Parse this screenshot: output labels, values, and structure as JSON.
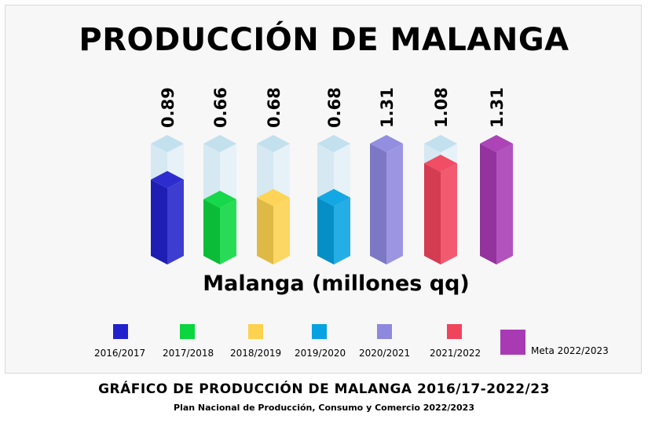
{
  "title": "PRODUCCIÓN DE MALANGA",
  "subtitle": "Malanga (millones qq)",
  "footer": {
    "main": "GRÁFICO DE PRODUCCIÓN DE MALANGA 2016/17-2022/23",
    "source": "Plan Nacional de Producción, Consumo y Comercio 2022/2023"
  },
  "chart_data": {
    "type": "bar",
    "title": "PRODUCCIÓN DE MALANGA",
    "ylabel": "Malanga (millones qq)",
    "xlabel": "",
    "categories": [
      "2016/2017",
      "2017/2018",
      "2018/2019",
      "2019/2020",
      "2020/2021",
      "2021/2022",
      "Meta 2022/2023"
    ],
    "values": [
      0.89,
      0.66,
      0.68,
      0.68,
      1.31,
      1.08,
      1.31
    ],
    "value_labels": [
      "0.89",
      "0.66",
      "0.68",
      "0.68",
      "1.31",
      "1.08",
      "1.31"
    ],
    "colors": [
      "#2222cc",
      "#0bd640",
      "#fdd24e",
      "#07a2e2",
      "#8e88de",
      "#f0445c",
      "#a83ab4"
    ],
    "ylim": [
      0,
      1.31
    ],
    "legend_position": "bottom"
  }
}
